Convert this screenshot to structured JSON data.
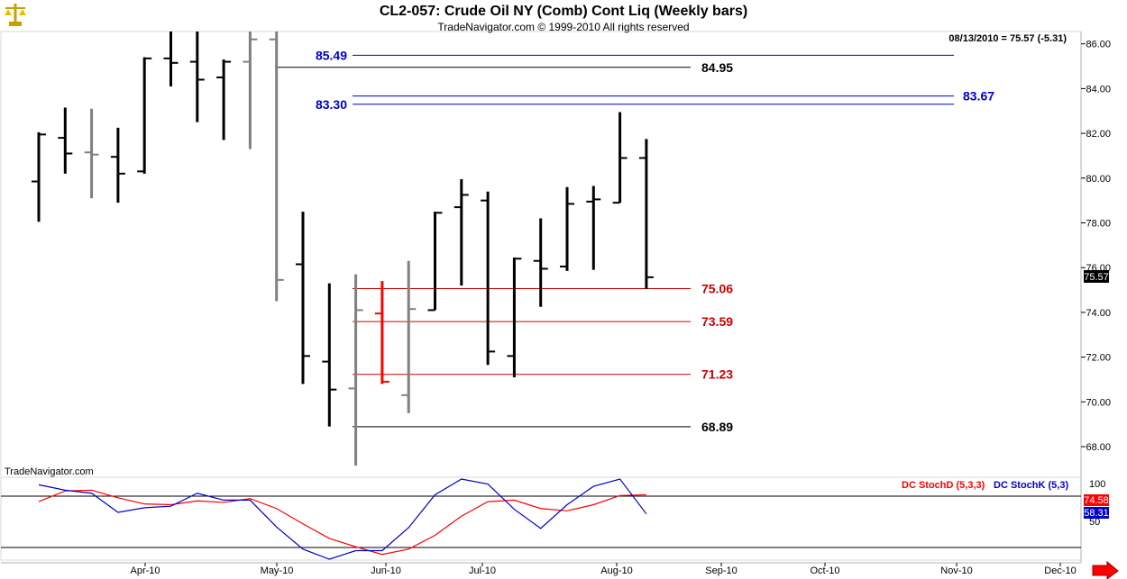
{
  "title": "CL2-057:  Crude Oil NY (Comb) Cont Liq  (Weekly bars)",
  "subtitle": "TradeNavigator.com © 1999-2010 All rights reserved",
  "status": "08/13/2010 = 75.57 (-5.31)",
  "watermark": "TradeNavigator.com",
  "last_price_label": "75.57",
  "colors": {
    "up": "#000000",
    "down": "#808080",
    "highlight": "#ff0000",
    "res": "#0000cc",
    "sup": "#cc0000",
    "black_line": "#000000",
    "stochD": "#ff0000",
    "stochK": "#0000cc",
    "dot": "#00cc00"
  },
  "icons": {
    "logo": "scales-logo-icon",
    "scroll": "right-arrow-icon"
  },
  "chart_data": [
    {
      "type": "ohlc",
      "title": "CL2-057:  Crude Oil NY (Comb) Cont Liq  (Weekly bars)",
      "x_tick_labels": [
        "Apr-10",
        "May-10",
        "Jun-10",
        "Jul-10",
        "Aug-10",
        "Sep-10",
        "Oct-10",
        "Nov-10",
        "Dec-10"
      ],
      "y_tick_labels": [
        "68.00",
        "70.00",
        "72.00",
        "74.00",
        "76.00",
        "78.00",
        "80.00",
        "82.00",
        "84.00",
        "86.00"
      ],
      "ylim": [
        67.0,
        86.5
      ],
      "bars": [
        {
          "o": 79.85,
          "h": 82.05,
          "l": 78.05,
          "c": 81.95,
          "color": "up"
        },
        {
          "o": 81.8,
          "h": 83.15,
          "l": 80.2,
          "c": 81.1,
          "color": "up"
        },
        {
          "o": 81.15,
          "h": 83.1,
          "l": 79.1,
          "c": 81.05,
          "color": "down"
        },
        {
          "o": 80.95,
          "h": 82.25,
          "l": 78.9,
          "c": 80.2,
          "color": "up"
        },
        {
          "o": 80.3,
          "h": 85.4,
          "l": 80.2,
          "c": 85.35,
          "color": "up"
        },
        {
          "o": 85.35,
          "h": 87.5,
          "l": 84.1,
          "c": 85.15,
          "color": "up"
        },
        {
          "o": 85.2,
          "h": 87.8,
          "l": 82.5,
          "c": 84.4,
          "color": "up"
        },
        {
          "o": 84.5,
          "h": 85.3,
          "l": 81.7,
          "c": 85.2,
          "color": "up"
        },
        {
          "o": 85.2,
          "h": 87.8,
          "l": 81.3,
          "c": 86.2,
          "color": "down"
        },
        {
          "o": 86.2,
          "h": 87.8,
          "l": 74.5,
          "c": 75.45,
          "color": "down"
        },
        {
          "o": 76.15,
          "h": 78.5,
          "l": 70.8,
          "c": 72.05,
          "color": "up"
        },
        {
          "o": 71.8,
          "h": 75.3,
          "l": 68.9,
          "c": 70.55,
          "color": "up"
        },
        {
          "o": 70.6,
          "h": 75.7,
          "l": 67.15,
          "c": 74.1,
          "color": "down"
        },
        {
          "o": 73.95,
          "h": 75.4,
          "l": 70.8,
          "c": 70.9,
          "color": "highlight"
        },
        {
          "o": 70.3,
          "h": 76.3,
          "l": 69.5,
          "c": 74.15,
          "color": "down"
        },
        {
          "o": 74.1,
          "h": 78.5,
          "l": 74.1,
          "c": 78.45,
          "color": "up"
        },
        {
          "o": 78.7,
          "h": 79.95,
          "l": 75.2,
          "c": 79.25,
          "color": "up"
        },
        {
          "o": 79.0,
          "h": 79.4,
          "l": 71.65,
          "c": 72.25,
          "color": "up"
        },
        {
          "o": 72.05,
          "h": 76.45,
          "l": 71.1,
          "c": 76.4,
          "color": "up"
        },
        {
          "o": 76.3,
          "h": 78.2,
          "l": 74.25,
          "c": 75.95,
          "color": "up"
        },
        {
          "o": 76.05,
          "h": 79.6,
          "l": 75.85,
          "c": 78.85,
          "color": "up"
        },
        {
          "o": 78.95,
          "h": 79.65,
          "l": 75.9,
          "c": 79.05,
          "color": "up"
        },
        {
          "o": 78.9,
          "h": 82.95,
          "l": 78.9,
          "c": 80.9,
          "color": "up"
        },
        {
          "o": 80.9,
          "h": 81.75,
          "l": 75.05,
          "c": 75.57,
          "color": "up"
        }
      ],
      "levels": [
        {
          "label": "85.49",
          "value": 85.49,
          "label_side": "left",
          "color": "res"
        },
        {
          "label": "84.95",
          "value": 84.95,
          "label_side": "right",
          "color": "black_line"
        },
        {
          "label": "83.67",
          "value": 83.67,
          "label_side": "far-right",
          "color": "res"
        },
        {
          "label": "83.30",
          "value": 83.3,
          "label_side": "left",
          "color": "res"
        },
        {
          "label": "75.06",
          "value": 75.06,
          "label_side": "right",
          "color": "sup"
        },
        {
          "label": "73.59",
          "value": 73.59,
          "label_side": "right",
          "color": "sup"
        },
        {
          "label": "71.23",
          "value": 71.23,
          "label_side": "right",
          "color": "sup"
        },
        {
          "label": "68.89",
          "value": 68.89,
          "label_side": "right",
          "color": "black_line"
        }
      ],
      "grid": false,
      "last_price": 75.57
    },
    {
      "type": "line",
      "ylim": [
        0,
        100
      ],
      "y_tick_labels": [
        "100",
        "50"
      ],
      "badges": [
        "74.58",
        "58.31"
      ],
      "series": [
        {
          "name": "DC StochD (5,3,3)",
          "color": "stochD",
          "values": [
            74,
            88,
            89,
            79,
            71,
            70,
            75,
            73,
            78,
            65,
            45,
            26,
            15,
            5,
            12,
            30,
            55,
            74,
            76,
            65,
            62,
            70,
            82,
            83
          ]
        },
        {
          "name": "DC StochK (5,3)",
          "color": "stochK",
          "values": [
            96,
            89,
            85,
            60,
            66,
            68,
            85,
            76,
            76,
            41,
            12,
            -17,
            10,
            10,
            40,
            83,
            120,
            97,
            64,
            39,
            70,
            94,
            114,
            58
          ]
        }
      ]
    }
  ]
}
